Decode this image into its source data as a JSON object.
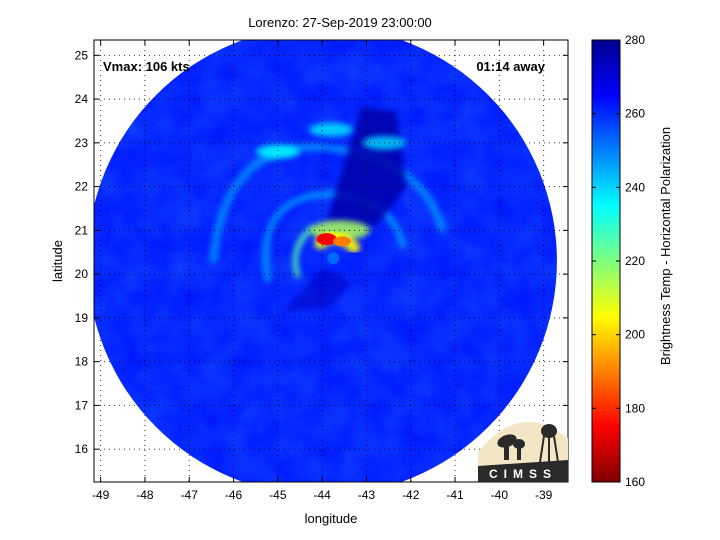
{
  "chart_data": {
    "type": "heatmap",
    "title": "Lorenzo: 27-Sep-2019 23:00:00",
    "xlabel": "longitude",
    "ylabel": "latitude",
    "xlim": [
      -49.15,
      -38.45
    ],
    "ylim": [
      15.25,
      25.35
    ],
    "xticks": [
      -49,
      -48,
      -47,
      -46,
      -45,
      -44,
      -43,
      -42,
      -41,
      -40,
      -39
    ],
    "yticks": [
      16,
      17,
      18,
      19,
      20,
      21,
      22,
      23,
      24,
      25
    ],
    "grid": true,
    "grid_style": "dotted",
    "annotations": {
      "vmax": "Vmax: 106 kts",
      "away": "01:14 away"
    },
    "colorbar": {
      "label": "Brightness Temp - Horizontal Polarization",
      "min": 160,
      "max": 280,
      "ticks": [
        160,
        180,
        200,
        220,
        240,
        260,
        280
      ],
      "colormap": "jet"
    },
    "swath": {
      "center_lon": -44.0,
      "center_lat": 20.3,
      "radius_deg": 5.3,
      "background_temp": 262
    },
    "storm_center": {
      "lon": -43.75,
      "lat": 20.5
    },
    "features": [
      {
        "name": "eyewall-warm",
        "lon": -43.9,
        "lat": 20.8,
        "temp": 175
      },
      {
        "name": "eyewall-east",
        "lon": -43.55,
        "lat": 20.75,
        "temp": 190
      },
      {
        "name": "inner-band-north",
        "lon": -43.6,
        "lat": 21.0,
        "temp": 215
      },
      {
        "name": "band-northwest",
        "lon": -45.0,
        "lat": 22.8,
        "temp": 235
      },
      {
        "name": "band-north",
        "lon": -43.8,
        "lat": 23.3,
        "temp": 238
      },
      {
        "name": "band-east",
        "lon": -42.6,
        "lat": 23.0,
        "temp": 240
      },
      {
        "name": "dark-wedge",
        "lon": -43.0,
        "lat": 22.8,
        "temp": 275
      },
      {
        "name": "swirl-southwest",
        "lon": -45.0,
        "lat": 20.2,
        "temp": 246
      }
    ],
    "logo": "CIMSS"
  },
  "colors": {
    "background_field": "#1c58f0",
    "axes_frame": "#000000",
    "jet_stops": [
      "#00008f",
      "#0000ff",
      "#00ffff",
      "#ffff00",
      "#ff0000",
      "#800000"
    ]
  }
}
